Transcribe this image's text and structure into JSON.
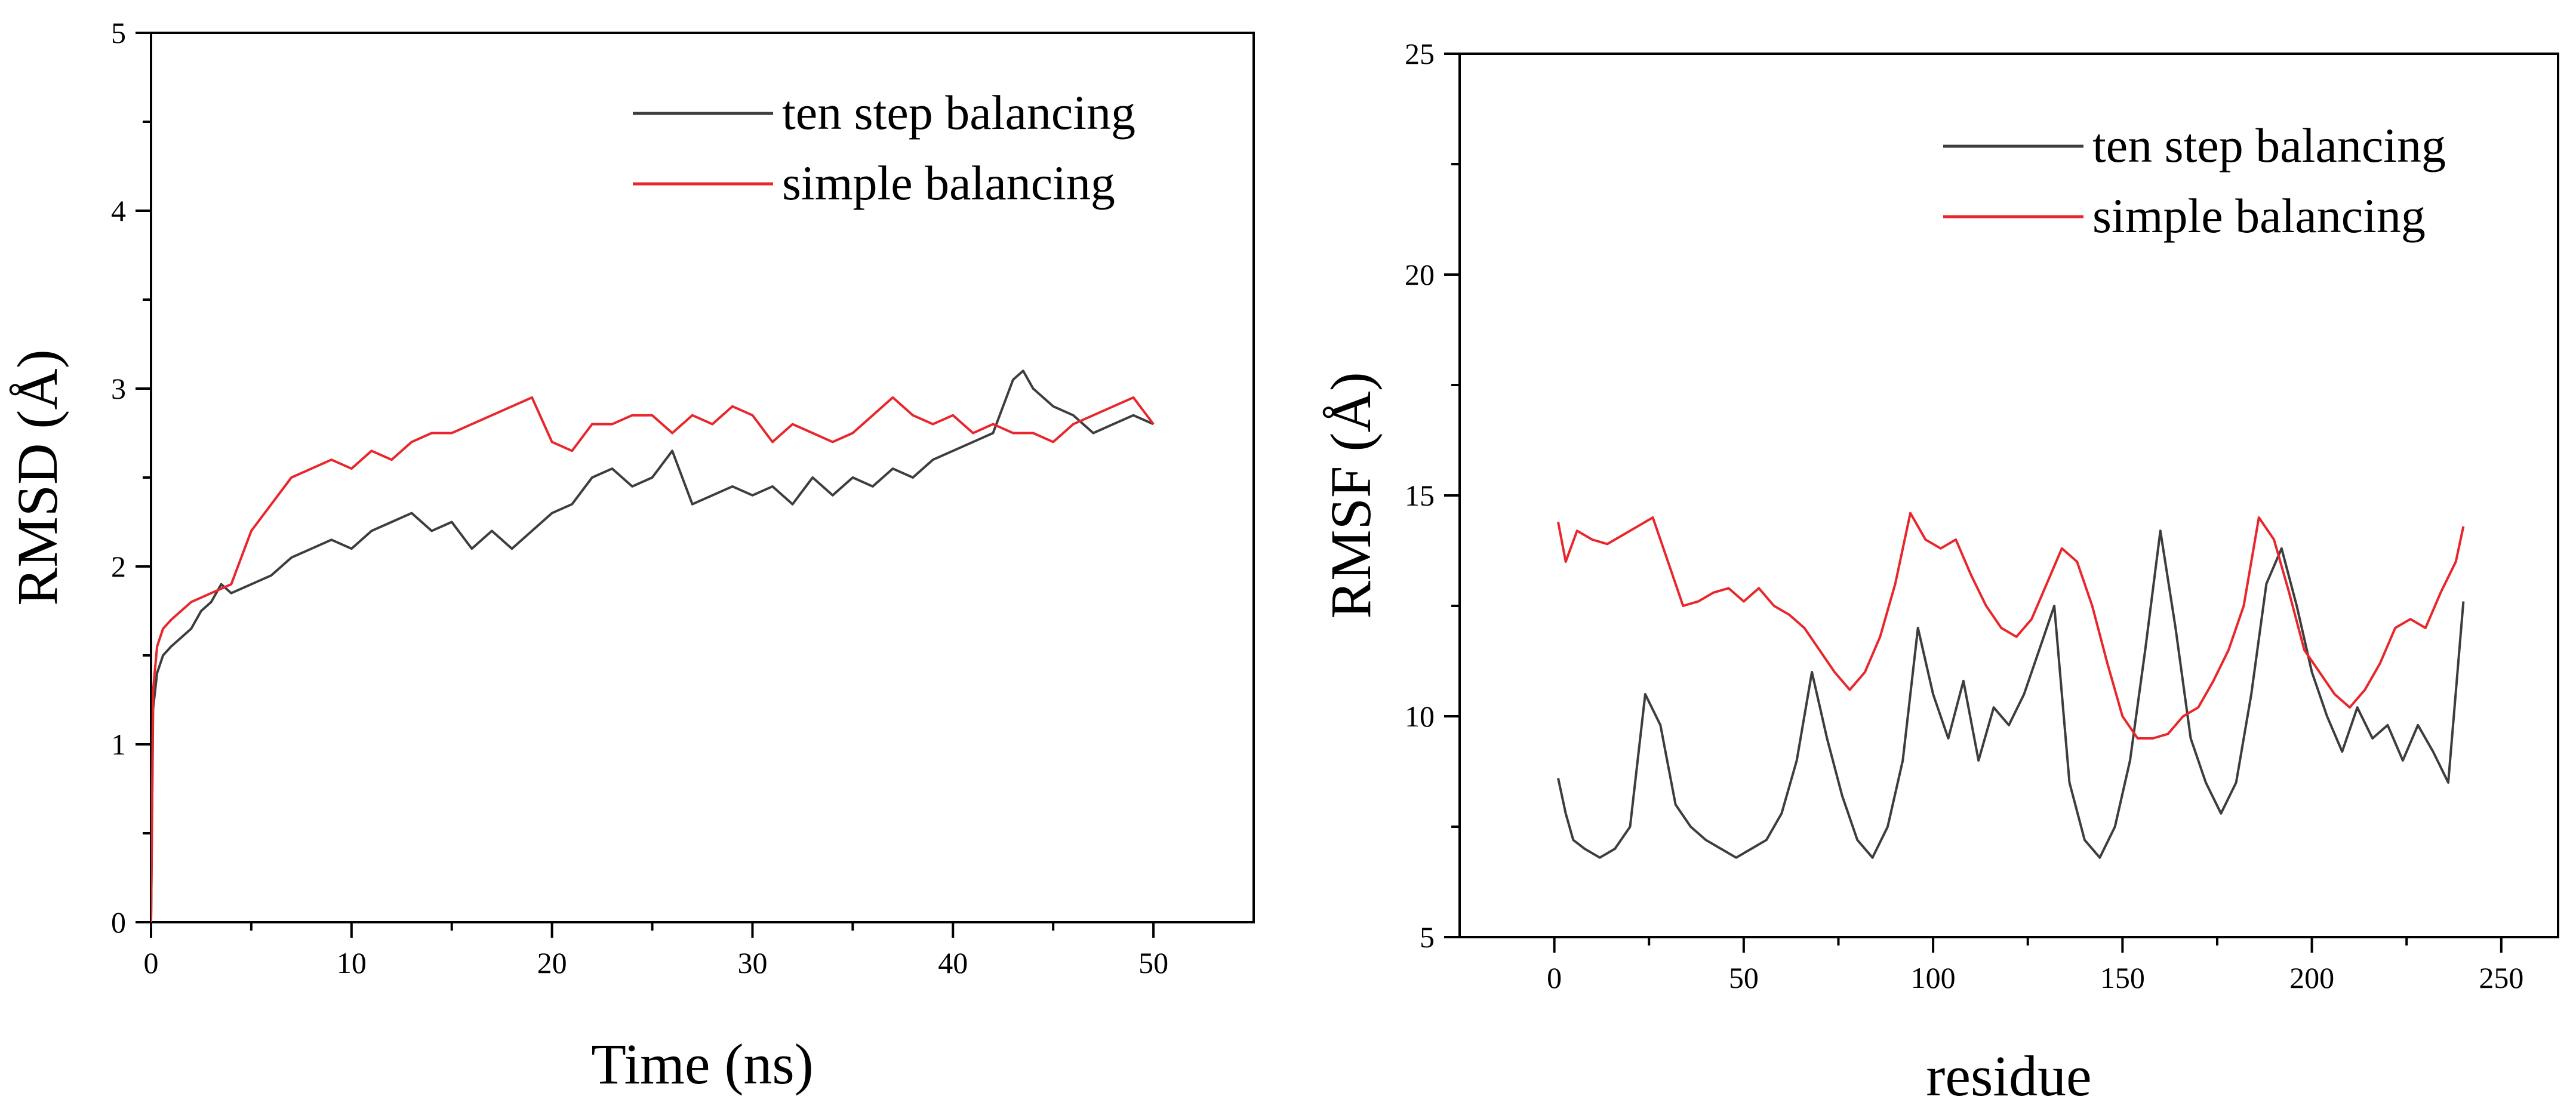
{
  "chart_data": [
    {
      "type": "line",
      "title": "",
      "xlabel": "Time (ns)",
      "ylabel": "RMSD (Å)",
      "xlim": [
        0,
        55
      ],
      "ylim": [
        0,
        5
      ],
      "xticks": [
        0,
        10,
        20,
        30,
        40,
        50
      ],
      "yticks": [
        0,
        1,
        2,
        3,
        4,
        5
      ],
      "grid": false,
      "legend_position": "top-right",
      "series": [
        {
          "name": "ten step balancing",
          "color": "#3d3d3d",
          "x": [
            0,
            0.1,
            0.3,
            0.6,
            1,
            1.5,
            2,
            2.5,
            3,
            3.5,
            4,
            5,
            6,
            7,
            8,
            9,
            10,
            11,
            12,
            13,
            14,
            15,
            16,
            17,
            18,
            19,
            20,
            21,
            22,
            23,
            24,
            25,
            26,
            27,
            28,
            29,
            30,
            31,
            32,
            33,
            34,
            35,
            36,
            37,
            38,
            39,
            40,
            41,
            42,
            43,
            43.5,
            44,
            45,
            46,
            47,
            48,
            49,
            50
          ],
          "y": [
            0,
            1.2,
            1.4,
            1.5,
            1.55,
            1.6,
            1.65,
            1.75,
            1.8,
            1.9,
            1.85,
            1.9,
            1.95,
            2.05,
            2.1,
            2.15,
            2.1,
            2.2,
            2.25,
            2.3,
            2.2,
            2.25,
            2.1,
            2.2,
            2.1,
            2.2,
            2.3,
            2.35,
            2.5,
            2.55,
            2.45,
            2.5,
            2.65,
            2.35,
            2.4,
            2.45,
            2.4,
            2.45,
            2.35,
            2.5,
            2.4,
            2.5,
            2.45,
            2.55,
            2.5,
            2.6,
            2.65,
            2.7,
            2.75,
            3.05,
            3.1,
            3.0,
            2.9,
            2.85,
            2.75,
            2.8,
            2.85,
            2.8
          ]
        },
        {
          "name": "simple balancing",
          "color": "#e8262b",
          "x": [
            0,
            0.1,
            0.3,
            0.6,
            1,
            1.5,
            2,
            3,
            4,
            5,
            6,
            7,
            8,
            9,
            10,
            11,
            12,
            13,
            14,
            15,
            16,
            17,
            18,
            19,
            20,
            21,
            22,
            23,
            24,
            25,
            26,
            27,
            28,
            29,
            30,
            31,
            32,
            33,
            34,
            35,
            36,
            37,
            38,
            39,
            40,
            41,
            42,
            43,
            44,
            45,
            46,
            47,
            48,
            49,
            50
          ],
          "y": [
            0,
            1.3,
            1.55,
            1.65,
            1.7,
            1.75,
            1.8,
            1.85,
            1.9,
            2.2,
            2.35,
            2.5,
            2.55,
            2.6,
            2.55,
            2.65,
            2.6,
            2.7,
            2.75,
            2.75,
            2.8,
            2.85,
            2.9,
            2.95,
            2.7,
            2.65,
            2.8,
            2.8,
            2.85,
            2.85,
            2.75,
            2.85,
            2.8,
            2.9,
            2.85,
            2.7,
            2.8,
            2.75,
            2.7,
            2.75,
            2.85,
            2.95,
            2.85,
            2.8,
            2.85,
            2.75,
            2.8,
            2.75,
            2.75,
            2.7,
            2.8,
            2.85,
            2.9,
            2.95,
            2.8
          ]
        }
      ]
    },
    {
      "type": "line",
      "title": "",
      "xlabel": "residue",
      "ylabel": "RMSF (Å)",
      "xlim": [
        -25,
        265
      ],
      "ylim": [
        5,
        25
      ],
      "xticks": [
        0,
        50,
        100,
        150,
        200,
        250
      ],
      "yticks": [
        5,
        10,
        15,
        20,
        25
      ],
      "grid": false,
      "legend_position": "top-right",
      "series": [
        {
          "name": "ten step balancing",
          "color": "#3d3d3d",
          "x": [
            1,
            3,
            5,
            8,
            12,
            16,
            20,
            24,
            28,
            32,
            36,
            40,
            44,
            48,
            52,
            56,
            60,
            64,
            68,
            72,
            76,
            80,
            84,
            88,
            92,
            96,
            100,
            104,
            108,
            112,
            116,
            120,
            124,
            128,
            132,
            136,
            140,
            144,
            148,
            152,
            156,
            160,
            164,
            168,
            172,
            176,
            180,
            184,
            188,
            192,
            196,
            200,
            204,
            208,
            212,
            216,
            220,
            224,
            228,
            232,
            236,
            240
          ],
          "y": [
            8.6,
            7.8,
            7.2,
            7.0,
            6.8,
            7.0,
            7.5,
            10.5,
            9.8,
            8.0,
            7.5,
            7.2,
            7.0,
            6.8,
            7.0,
            7.2,
            7.8,
            9.0,
            11.0,
            9.5,
            8.2,
            7.2,
            6.8,
            7.5,
            9.0,
            12.0,
            10.5,
            9.5,
            10.8,
            9.0,
            10.2,
            9.8,
            10.5,
            11.5,
            12.5,
            8.5,
            7.2,
            6.8,
            7.5,
            9.0,
            11.5,
            14.2,
            12.0,
            9.5,
            8.5,
            7.8,
            8.5,
            10.5,
            13.0,
            13.8,
            12.5,
            11.0,
            10.0,
            9.2,
            10.2,
            9.5,
            9.8,
            9.0,
            9.8,
            9.2,
            8.5,
            12.6
          ]
        },
        {
          "name": "simple balancing",
          "color": "#e8262b",
          "x": [
            1,
            3,
            6,
            10,
            14,
            18,
            22,
            26,
            30,
            34,
            38,
            42,
            46,
            50,
            54,
            58,
            62,
            66,
            70,
            74,
            78,
            82,
            86,
            90,
            94,
            98,
            102,
            106,
            110,
            114,
            118,
            122,
            126,
            130,
            134,
            138,
            142,
            146,
            150,
            154,
            158,
            162,
            166,
            170,
            174,
            178,
            182,
            186,
            190,
            194,
            198,
            202,
            206,
            210,
            214,
            218,
            222,
            226,
            230,
            234,
            238,
            240
          ],
          "y": [
            14.4,
            13.5,
            14.2,
            14.0,
            13.9,
            14.1,
            14.3,
            14.5,
            13.5,
            12.5,
            12.6,
            12.8,
            12.9,
            12.6,
            12.9,
            12.5,
            12.3,
            12.0,
            11.5,
            11.0,
            10.6,
            11.0,
            11.8,
            13.0,
            14.6,
            14.0,
            13.8,
            14.0,
            13.2,
            12.5,
            12.0,
            11.8,
            12.2,
            13.0,
            13.8,
            13.5,
            12.5,
            11.2,
            10.0,
            9.5,
            9.5,
            9.6,
            10.0,
            10.2,
            10.8,
            11.5,
            12.5,
            14.5,
            14.0,
            12.8,
            11.5,
            11.0,
            10.5,
            10.2,
            10.6,
            11.2,
            12.0,
            12.2,
            12.0,
            12.8,
            13.5,
            14.3
          ]
        }
      ]
    }
  ]
}
